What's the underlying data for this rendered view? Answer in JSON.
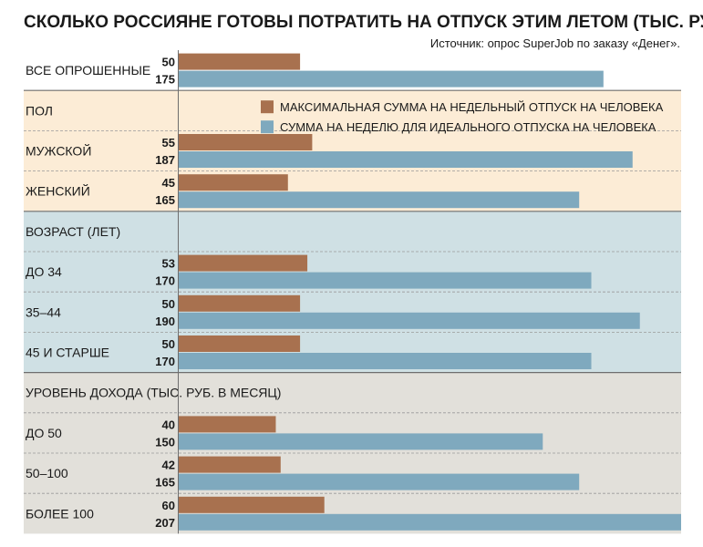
{
  "chart_data": {
    "type": "bar",
    "orientation": "horizontal",
    "title": "СКОЛЬКО РОССИЯНЕ ГОТОВЫ ПОТРАТИТЬ НА ОТПУСК ЭТИМ ЛЕТОМ (ТЫС. РУБ.)",
    "source": "Источник: опрос SuperJob по заказу «Денег».",
    "legend_position": "top-right",
    "xlim": [
      0,
      207
    ],
    "series": [
      {
        "name": "МАКСИМАЛЬНАЯ СУММА НА НЕДЕЛЬНЫЙ ОТПУСК НА ЧЕЛОВЕКА",
        "color": "#a8714f"
      },
      {
        "name": "СУММА НА НЕДЕЛЮ ДЛЯ ИДЕАЛЬНОГО ОТПУСКА НА ЧЕЛОВЕКА",
        "color": "#7fa9be"
      }
    ],
    "sections": [
      {
        "header": "",
        "background": "#ffffff",
        "rows": [
          {
            "label": "ВСЕ ОПРОШЕННЫЕ",
            "values": [
              50,
              175
            ]
          }
        ]
      },
      {
        "header": "ПОЛ",
        "background": "#fcecd6",
        "rows": [
          {
            "label": "МУЖСКОЙ",
            "values": [
              55,
              187
            ]
          },
          {
            "label": "ЖЕНСКИЙ",
            "values": [
              45,
              165
            ]
          }
        ]
      },
      {
        "header": "ВОЗРАСТ (ЛЕТ)",
        "background": "#cfe0e4",
        "rows": [
          {
            "label": "ДО 34",
            "values": [
              53,
              170
            ]
          },
          {
            "label": "35–44",
            "values": [
              50,
              190
            ]
          },
          {
            "label": "45 И СТАРШЕ",
            "values": [
              50,
              170
            ]
          }
        ]
      },
      {
        "header": "УРОВЕНЬ ДОХОДА (ТЫС. РУБ. В МЕСЯЦ)",
        "background": "#e2e0da",
        "rows": [
          {
            "label": "ДО 50",
            "values": [
              40,
              150
            ]
          },
          {
            "label": "50–100",
            "values": [
              42,
              165
            ]
          },
          {
            "label": "БОЛЕЕ 100",
            "values": [
              60,
              207
            ]
          }
        ]
      }
    ]
  }
}
